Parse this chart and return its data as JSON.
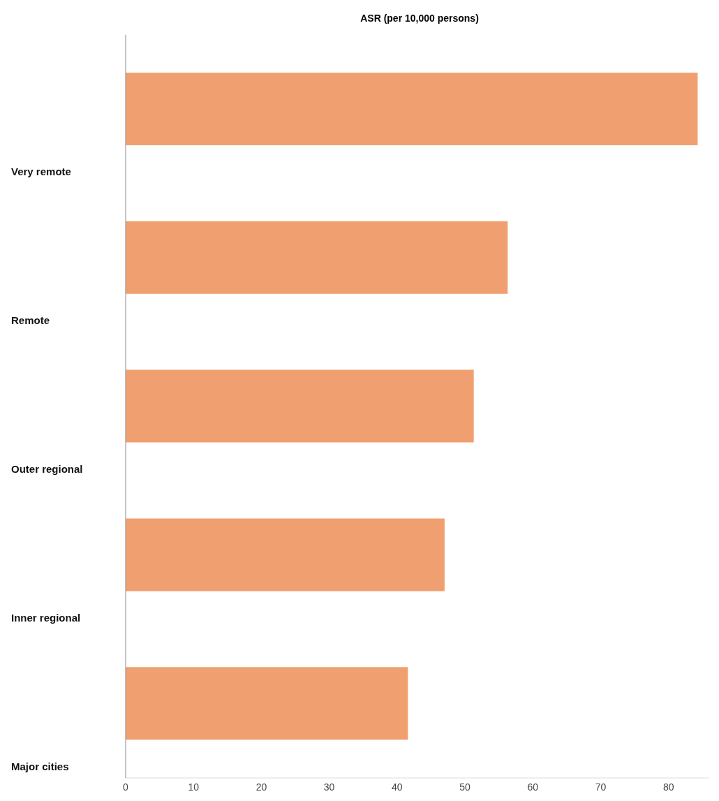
{
  "chart_data": {
    "type": "bar",
    "orientation": "horizontal",
    "xlabel": "ASR (per 10,000 persons)",
    "categories": [
      "Very remote",
      "Remote",
      "Outer regional",
      "Inner regional",
      "Major cities"
    ],
    "values": [
      84.3,
      56.3,
      51.3,
      47.0,
      41.6
    ],
    "color": "#f0a070",
    "xlim": [
      0,
      86
    ],
    "xticks": [
      0,
      10,
      20,
      30,
      40,
      50,
      60,
      70,
      80
    ],
    "grid": false,
    "legend": false
  }
}
